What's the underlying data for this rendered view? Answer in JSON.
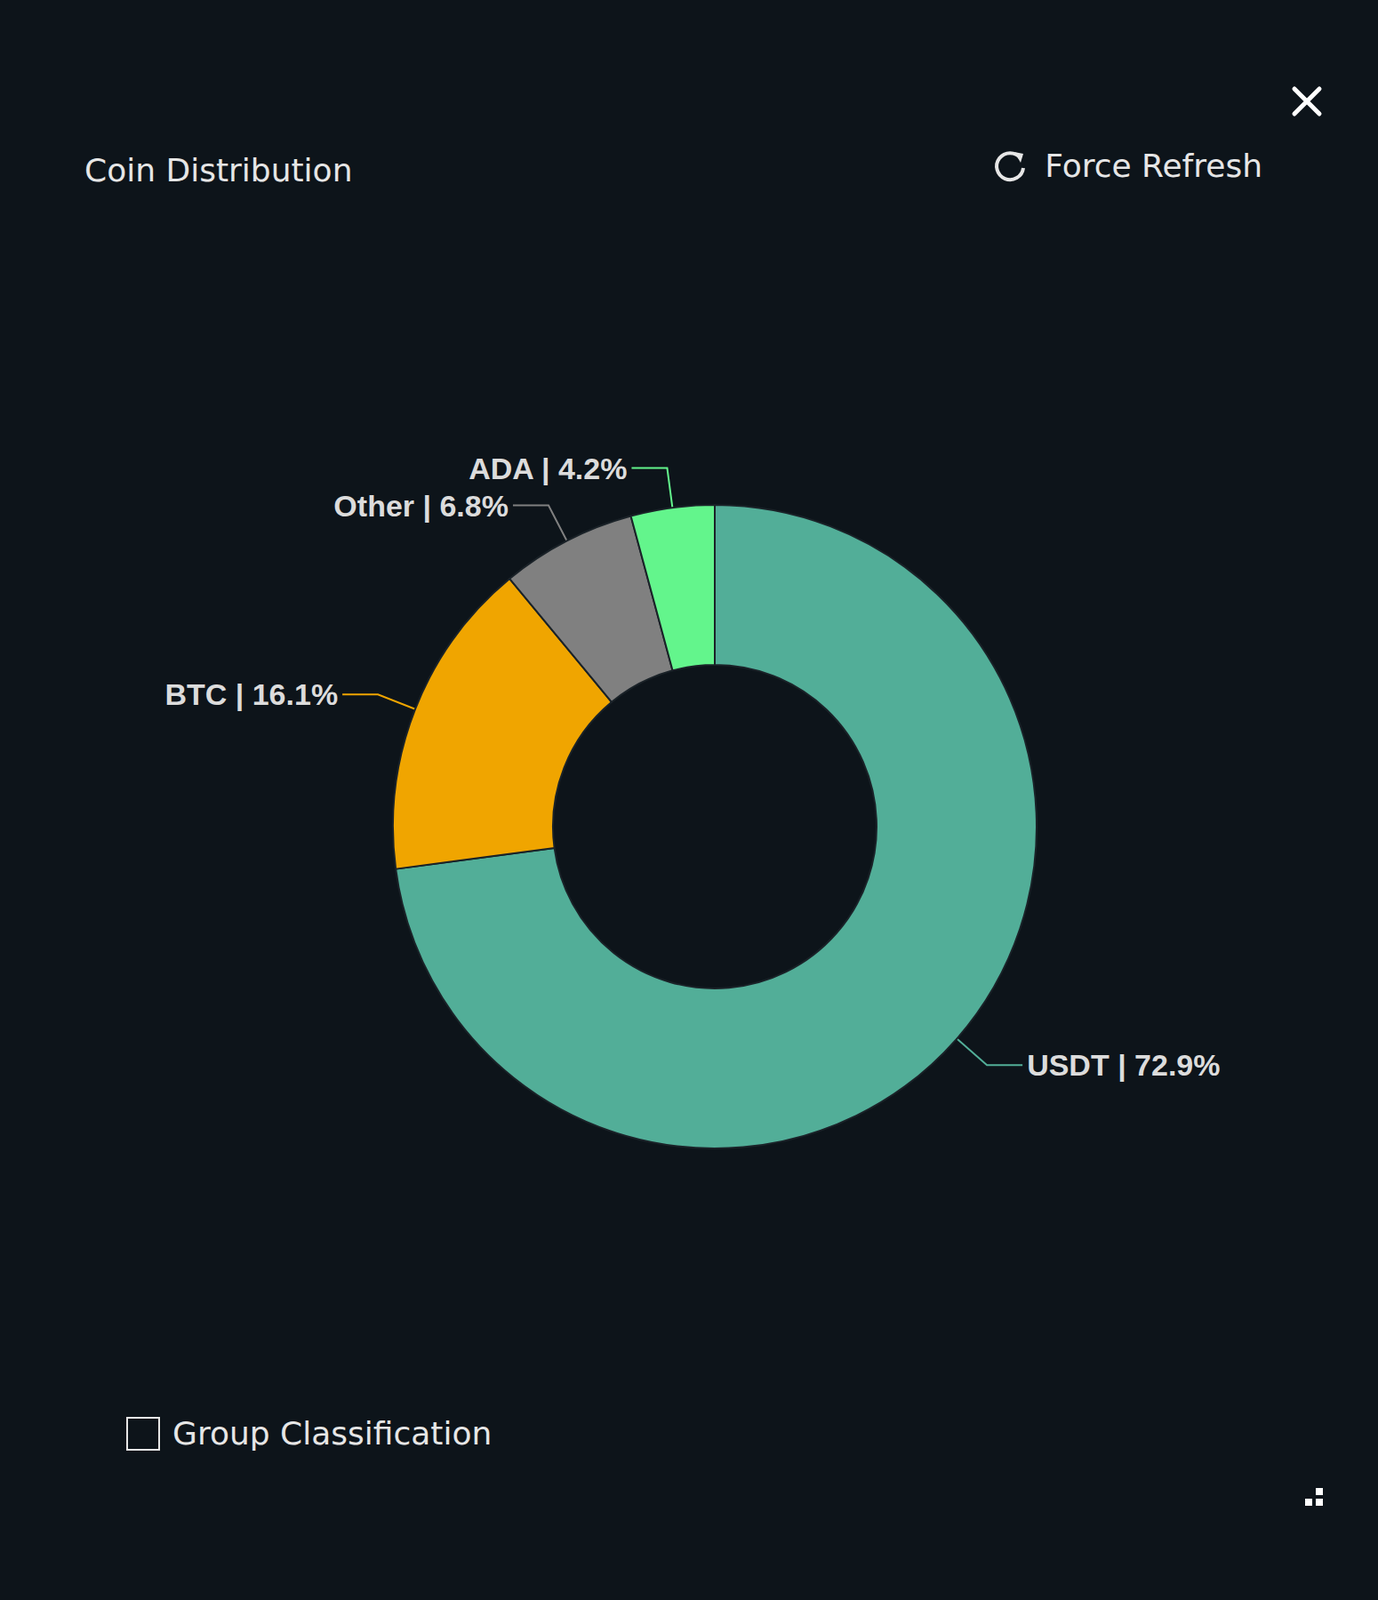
{
  "chart_data": {
    "type": "pie",
    "donut": true,
    "title": "Coin Distribution",
    "categories": [
      "USDT",
      "BTC",
      "Other",
      "ADA"
    ],
    "values": [
      72.9,
      16.1,
      6.8,
      4.2
    ],
    "value_labels": [
      "USDT | 72.9%",
      "BTC | 16.1%",
      "Other | 6.8%",
      "ADA | 4.2%"
    ],
    "colors": [
      "#52ae98",
      "#f0a500",
      "#808080",
      "#63f58c"
    ],
    "data_labels": true
  },
  "ui": {
    "refresh": "Force Refresh",
    "checkbox": "Group Classification"
  }
}
